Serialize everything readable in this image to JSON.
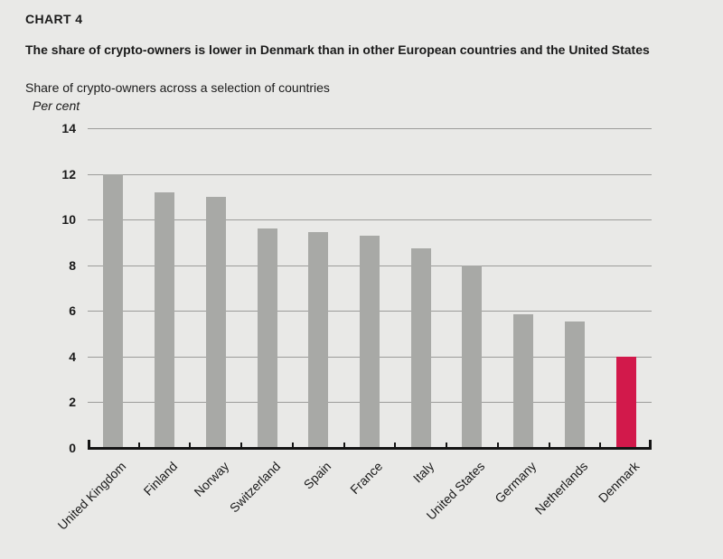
{
  "page": {
    "background_color": "#e9e9e7",
    "text_color": "#1a1a1a"
  },
  "header": {
    "chart_label": "CHART 4",
    "title": "The share of crypto-owners is lower in Denmark than in other European countries and the United States",
    "subtitle": "Share of crypto-owners across a selection of countries",
    "unit_label": "Per cent"
  },
  "chart_data": {
    "type": "bar",
    "title": "Share of crypto-owners across a selection of countries",
    "categories": [
      "United Kingdom",
      "Finland",
      "Norway",
      "Switzerland",
      "Spain",
      "France",
      "Italy",
      "United States",
      "Germany",
      "Netherlands",
      "Denmark"
    ],
    "values": [
      12,
      11.2,
      11,
      9.6,
      9.45,
      9.3,
      8.75,
      8,
      5.85,
      5.55,
      4
    ],
    "xlabel": "",
    "ylabel": "Per cent",
    "ylim": [
      0,
      14
    ],
    "yticks": [
      0,
      2,
      4,
      6,
      8,
      10,
      12,
      14
    ],
    "grid": true,
    "legend": false,
    "bar_color": "#a8a9a6",
    "highlight_color": "#d2194b",
    "highlight_category": "Denmark",
    "axis_color": "#141414",
    "gridline_color": "#9c9c9a"
  }
}
